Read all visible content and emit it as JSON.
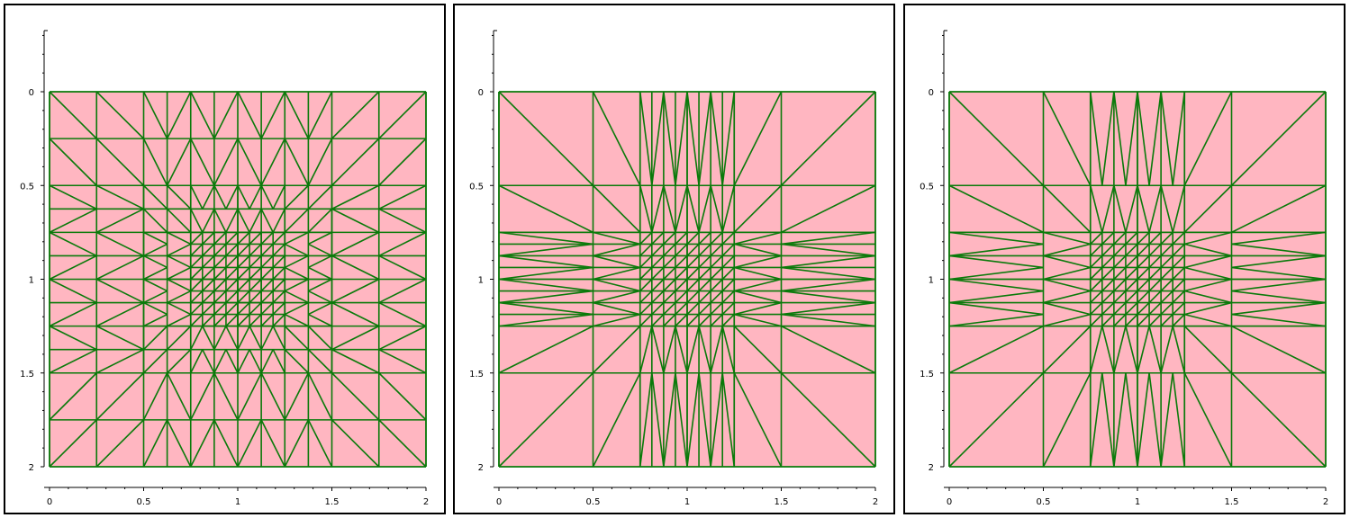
{
  "colors": {
    "fill": "#ffb6c1",
    "edge": "#0a7a0a",
    "axis": "#000000"
  },
  "chart_data": [
    {
      "type": "mesh",
      "xlim": [
        0,
        2
      ],
      "ylim": [
        0,
        2
      ],
      "y_inverted": true,
      "xticks": [
        "0",
        "0.5",
        "1",
        "1.5",
        "2"
      ],
      "yticks": [
        "0",
        "0.5",
        "1",
        "1.5",
        "2"
      ],
      "refinement_pattern": "graded",
      "outer_spacing": 0.25,
      "middle_region": [
        0.5,
        1.5
      ],
      "middle_spacing": 0.125,
      "inner_region": [
        0.75,
        1.25
      ],
      "inner_spacing": 0.0625
    },
    {
      "type": "mesh",
      "xlim": [
        0,
        2
      ],
      "ylim": [
        0,
        2
      ],
      "y_inverted": true,
      "xticks": [
        "0",
        "0.5",
        "1",
        "1.5",
        "2"
      ],
      "yticks": [
        "0",
        "0.5",
        "1",
        "1.5",
        "2"
      ],
      "refinement_pattern": "anisotropic-strips",
      "outer_spacing": 0.5,
      "strip_region": [
        0.75,
        1.25
      ],
      "strip_spacing": 0.125,
      "inner_region": [
        0.75,
        1.25
      ],
      "inner_spacing": 0.0625
    },
    {
      "type": "mesh",
      "xlim": [
        0,
        2
      ],
      "ylim": [
        0,
        2
      ],
      "y_inverted": true,
      "xticks": [
        "0",
        "0.5",
        "1",
        "1.5",
        "2"
      ],
      "yticks": [
        "0",
        "0.5",
        "1",
        "1.5",
        "2"
      ],
      "refinement_pattern": "anisotropic-strips-sharp",
      "outer_spacing": 0.5,
      "strip_region": [
        0.75,
        1.25
      ],
      "strip_spacing": 0.125,
      "inner_region": [
        0.75,
        1.25
      ],
      "inner_spacing": 0.0625
    }
  ]
}
